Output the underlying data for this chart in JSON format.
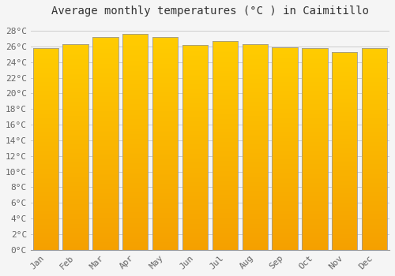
{
  "months": [
    "Jan",
    "Feb",
    "Mar",
    "Apr",
    "May",
    "Jun",
    "Jul",
    "Aug",
    "Sep",
    "Oct",
    "Nov",
    "Dec"
  ],
  "values": [
    25.8,
    26.3,
    27.2,
    27.6,
    27.2,
    26.2,
    26.7,
    26.3,
    25.9,
    25.8,
    25.3,
    25.8
  ],
  "title": "Average monthly temperatures (°C ) in Caimitillo",
  "ylim": [
    0,
    29
  ],
  "ytick_step": 2,
  "bar_color_top": "#FFCC00",
  "bar_color_bottom": "#F5A000",
  "bar_border_color": "#999999",
  "background_color": "#f5f5f5",
  "plot_bg_color": "#f5f5f5",
  "grid_color": "#cccccc",
  "title_fontsize": 10,
  "tick_fontsize": 8,
  "font_family": "monospace",
  "bar_width": 0.85,
  "gradient_steps": 200
}
